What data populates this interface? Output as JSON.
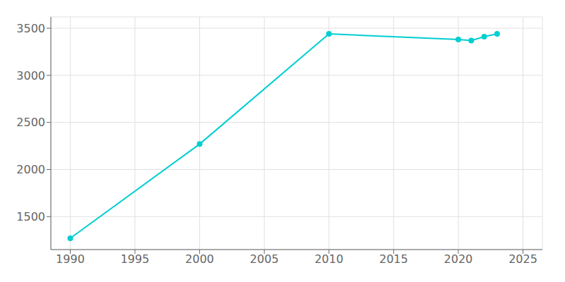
{
  "chart_data": {
    "type": "line",
    "x": [
      1990,
      2000,
      2010,
      2020,
      2021,
      2022,
      2023
    ],
    "values": [
      1270,
      2270,
      3440,
      3380,
      3370,
      3410,
      3440
    ],
    "color": "#00CED1",
    "marker": "o",
    "xlim": [
      1988.5,
      2026.5
    ],
    "ylim": [
      1150,
      3620
    ],
    "xticks": [
      1990,
      1995,
      2000,
      2005,
      2010,
      2015,
      2020,
      2025
    ],
    "yticks": [
      1500,
      2000,
      2500,
      3000,
      3500
    ],
    "grid": true
  }
}
